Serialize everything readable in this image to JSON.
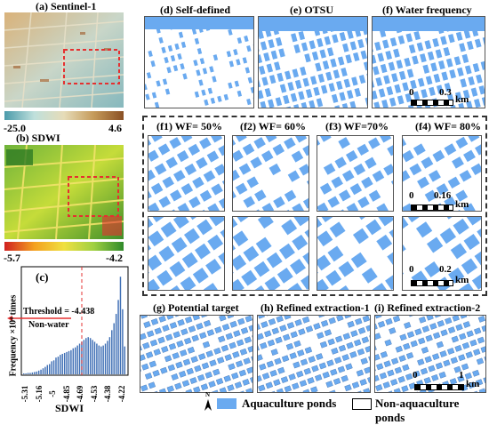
{
  "panels": {
    "a": "(a) Sentinel-1",
    "b": "(b) SDWI",
    "c": "(c)",
    "d": "(d) Self-defined",
    "e": "(e) OTSU",
    "f": "(f) Water frequency",
    "f1": "(f1) WF= 50%",
    "f2": "(f2) WF= 60%",
    "f3": "(f3) WF=70%",
    "f4": "(f4) WF= 80%",
    "g": "(g) Potential target",
    "h": "(h) Refined extraction-1",
    "i": "(i) Refined extraction-2"
  },
  "colorbars": {
    "a_min": "-25.0",
    "a_max": "4.6",
    "b_min": "-5.7",
    "b_max": "-4.2"
  },
  "scalebars": {
    "f": {
      "zero": "0",
      "val": "0.3",
      "unit": "km"
    },
    "f4": {
      "zero": "0",
      "val": "0.16",
      "unit": "km"
    },
    "f4b": {
      "zero": "0",
      "val": "0.2",
      "unit": "km"
    },
    "i": {
      "zero": "0",
      "val": "1",
      "unit": "km"
    }
  },
  "histogram": {
    "threshold_label": "Threshold = -4.438",
    "nonwater_label": "Non-water",
    "ylabel": "Frequency ×10⁴ times",
    "xlabel": "SDWI",
    "xticks": [
      "-5.31",
      "-5.16",
      "-5",
      "-4.85",
      "-4.69",
      "-4.53",
      "-4.38",
      "-4.22"
    ]
  },
  "legend": {
    "north": "N",
    "aquaculture": "Aquaculture ponds",
    "nonaquaculture": "Non-aquaculture ponds"
  },
  "colors": {
    "water": "#6aaaf0",
    "land": "#ffffff",
    "red_dash": "#e53030"
  },
  "chart_data": {
    "type": "bar",
    "xlabel": "SDWI",
    "ylabel": "Frequency ×10⁴ times",
    "threshold": -4.438,
    "xticks": [
      -5.31,
      -5.16,
      -5,
      -4.85,
      -4.69,
      -4.53,
      -4.38,
      -4.22
    ],
    "values": [
      0.02,
      0.02,
      0.03,
      0.03,
      0.04,
      0.05,
      0.06,
      0.08,
      0.1,
      0.13,
      0.16,
      0.2,
      0.22,
      0.28,
      0.3,
      0.36,
      0.38,
      0.42,
      0.44,
      0.46,
      0.48,
      0.5,
      0.52,
      0.56,
      0.58,
      0.62,
      0.66,
      0.7,
      0.74,
      0.78,
      0.8,
      0.78,
      0.74,
      0.7,
      0.66,
      0.62,
      0.6,
      0.62,
      0.66,
      0.72,
      0.8,
      0.95,
      1.1,
      1.3,
      1.6,
      2.1,
      1.4,
      0.6
    ]
  }
}
